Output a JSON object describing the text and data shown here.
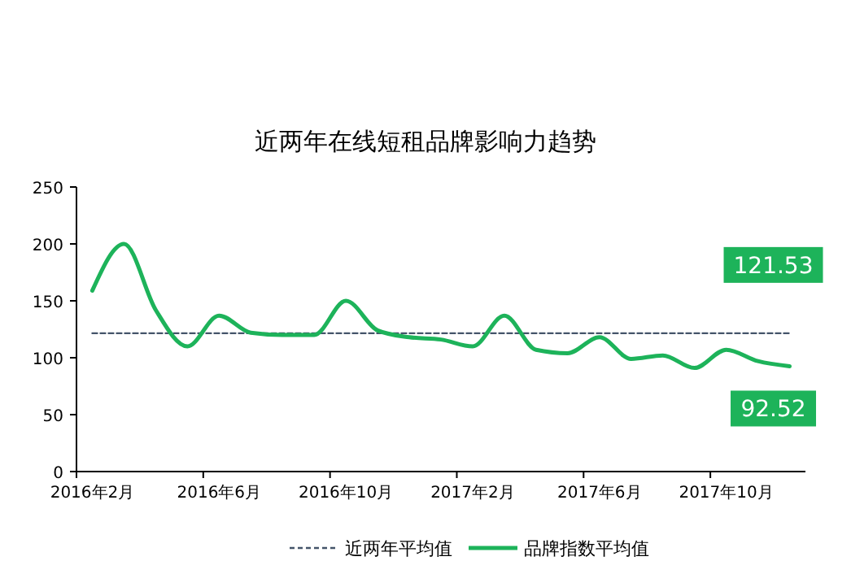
{
  "chart_data": {
    "type": "line",
    "title": "近两年在线短租品牌影响力趋势",
    "categories": [
      "2016年2月",
      null,
      null,
      null,
      "2016年6月",
      null,
      null,
      null,
      "2016年10月",
      null,
      null,
      null,
      "2017年2月",
      null,
      null,
      null,
      "2017年6月",
      null,
      null,
      null,
      "2017年10月",
      null,
      null
    ],
    "series": [
      {
        "name": "近两年平均值",
        "color": "#44546a",
        "line_style": "dashed",
        "values": [
          121.53,
          121.53,
          121.53,
          121.53,
          121.53,
          121.53,
          121.53,
          121.53,
          121.53,
          121.53,
          121.53,
          121.53,
          121.53,
          121.53,
          121.53,
          121.53,
          121.53,
          121.53,
          121.53,
          121.53,
          121.53,
          121.53,
          121.53
        ]
      },
      {
        "name": "品牌指数平均值",
        "color": "#1db35a",
        "line_style": "solid",
        "values": [
          159,
          200,
          142,
          110,
          137,
          122,
          120,
          120,
          150,
          124,
          118,
          116,
          110,
          137,
          107,
          104,
          118,
          99,
          102,
          91,
          107,
          97,
          92.52
        ]
      }
    ],
    "ylim": [
      0,
      250
    ],
    "yticks": [
      0,
      50,
      100,
      150,
      200,
      250
    ],
    "grid": false,
    "legend": "bottom",
    "marker": "none",
    "annotations": [
      {
        "text": "121.53",
        "y": 121.53
      },
      {
        "text": "92.52",
        "y": 92.52
      }
    ]
  }
}
